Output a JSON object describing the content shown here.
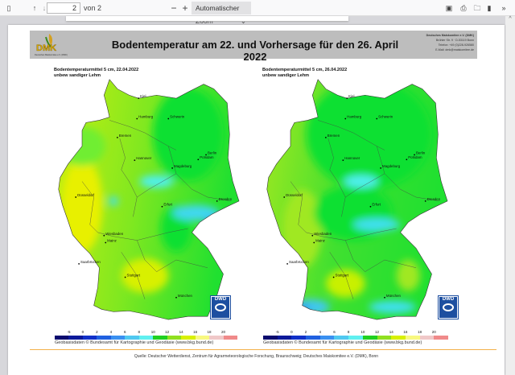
{
  "toolbar": {
    "page": "2",
    "page_total": "von 2",
    "zoom": "Automatischer Zoom",
    "icons": [
      "sidebar-toggle-icon",
      "arrow-up-icon",
      "arrow-down-icon",
      "zoom-out-icon",
      "zoom-in-icon",
      "presentation-icon",
      "print-icon",
      "save-icon",
      "bookmark-icon",
      "more-tools-icon"
    ]
  },
  "header": {
    "logo": "DMK",
    "logo_sub": "Deutsches Maiskomitee e.V. (DMK)",
    "title": "Bodentemperatur am 22. und Vorhersage für den 26. April 2022",
    "address": [
      "Deutsches Maiskomitee e.V. (DMK)",
      "Brühler Str. 9 · D-53119 Bonn",
      "Telefon: +49 (0)228-926580",
      "E-Mail: dmk@maiskomitee.de"
    ]
  },
  "maps": [
    {
      "label1": "Bodentemperaturmittel 5 cm, 22.04.2022",
      "label2": "unbew sandiger Lehm"
    },
    {
      "label1": "Bodentemperaturmittel 5 cm, 26.04.2022",
      "label2": "unbew sandiger Lehm"
    }
  ],
  "cities": [
    "Kiel",
    "Hamburg",
    "Schwerin",
    "Bremen",
    "Hannover",
    "Magdeburg",
    "Berlin",
    "Potsdam",
    "Düsseldorf",
    "Erfurt",
    "Dresden",
    "Wiesbaden",
    "Mainz",
    "Saarbrücken",
    "Stuttgart",
    "München"
  ],
  "dwd": "DWD",
  "legend": {
    "ticks": [
      "-5",
      "0",
      "2",
      "4",
      "6",
      "8",
      "10",
      "12",
      "14",
      "16",
      "18",
      "20"
    ],
    "colors": [
      "#0a0a6e",
      "#0c1a9a",
      "#1030c8",
      "#2060e0",
      "#3a90f0",
      "#50c8f0",
      "#60f0f0",
      "#20d020",
      "#90e020",
      "#d8f000",
      "#f8f880",
      "#f0c8c8",
      "#f08a8a"
    ]
  },
  "geo": "Geobasisdaten © Bundesamt für Kartographie und Geodäsie (www.bkg.bund.de)",
  "quelle": "Quelle: Deutscher Wetterdienst, Zentrum für Agrarmeteorologische Forschung, Braunschweig; Deutsches Maiskomitee e.V. (DMK), Bonn"
}
